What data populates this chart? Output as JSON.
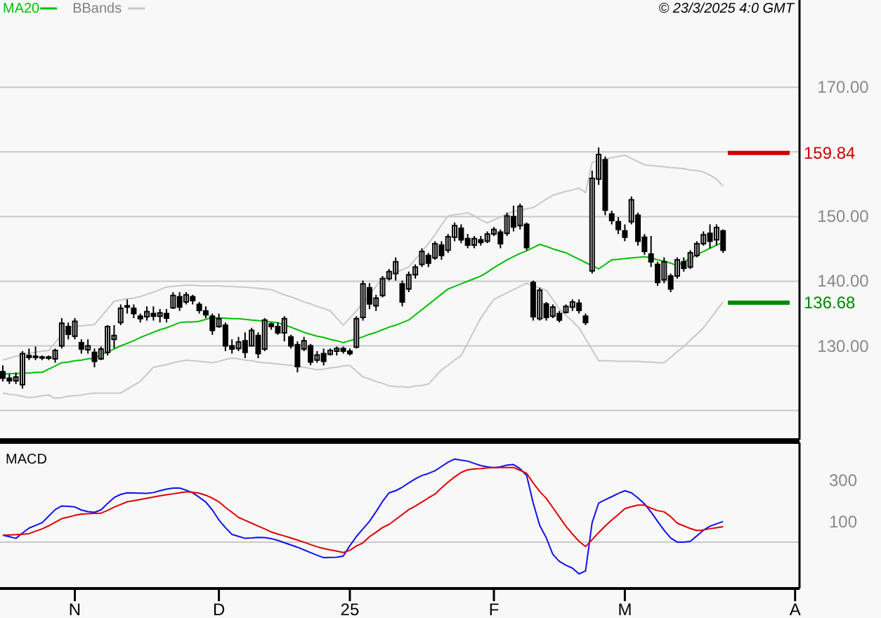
{
  "chart_data": [
    {
      "type": "candlestick",
      "color": "#000000",
      "categories": [
        null,
        null,
        null,
        null,
        null,
        null,
        null,
        null,
        null,
        null,
        null,
        null,
        null,
        null,
        null,
        null,
        null,
        null,
        null,
        null,
        null,
        null,
        null,
        null,
        null,
        null,
        null,
        null,
        null,
        null,
        null,
        null,
        null,
        null,
        null,
        null,
        null,
        null,
        null,
        null,
        null,
        null,
        null,
        null,
        null,
        null,
        null,
        null,
        null,
        null,
        null,
        null,
        null,
        null,
        null,
        null,
        null,
        null,
        null,
        null,
        null,
        null,
        null,
        null,
        null,
        null,
        null,
        null,
        null,
        null,
        null,
        null,
        null,
        null,
        null,
        null,
        null,
        null,
        null,
        null,
        null,
        null,
        null,
        null,
        null,
        null,
        null,
        null,
        null,
        null,
        null,
        null,
        null,
        null,
        null,
        null,
        null,
        null,
        null,
        null,
        null,
        null,
        null,
        null,
        null,
        null,
        null,
        null,
        null,
        null,
        null,
        null,
        null,
        null,
        null,
        null,
        null,
        null,
        null,
        null,
        null,
        null
      ],
      "ohlc": [
        [
          126.0,
          127.0,
          124.5,
          125.0
        ],
        [
          125.0,
          125.6,
          124.1,
          124.6
        ],
        [
          124.6,
          125.9,
          124.1,
          125.2
        ],
        [
          124.0,
          129.2,
          123.4,
          128.8
        ],
        [
          128.5,
          129.6,
          127.8,
          128.2
        ],
        [
          128.2,
          129.9,
          127.8,
          128.4
        ],
        [
          128.3,
          128.5,
          127.8,
          128.2
        ],
        [
          128.1,
          128.5,
          127.8,
          128.3
        ],
        [
          128.0,
          129.6,
          127.4,
          129.3
        ],
        [
          130.0,
          134.3,
          129.6,
          133.5
        ],
        [
          133.0,
          133.6,
          131.0,
          131.8
        ],
        [
          131.5,
          134.3,
          131.0,
          133.8
        ],
        [
          130.5,
          131.0,
          128.8,
          129.5
        ],
        [
          129.4,
          131.0,
          128.8,
          130.0
        ],
        [
          129.0,
          129.6,
          126.7,
          127.6
        ],
        [
          128.0,
          129.9,
          127.8,
          129.5
        ],
        [
          129.0,
          133.2,
          128.5,
          133.0
        ],
        [
          131.0,
          133.2,
          129.6,
          131.6
        ],
        [
          133.6,
          136.4,
          133.2,
          135.8
        ],
        [
          136.0,
          137.2,
          135.0,
          136.2
        ],
        [
          135.8,
          136.4,
          134.3,
          135.0
        ],
        [
          134.6,
          135.0,
          133.6,
          134.2
        ],
        [
          134.5,
          136.1,
          133.9,
          135.3
        ],
        [
          135.0,
          136.1,
          133.9,
          134.6
        ],
        [
          134.6,
          135.7,
          133.6,
          135.1
        ],
        [
          135.0,
          135.7,
          133.6,
          134.3
        ],
        [
          135.9,
          138.3,
          135.7,
          137.8
        ],
        [
          137.6,
          138.3,
          135.4,
          136.0
        ],
        [
          136.8,
          138.3,
          136.4,
          137.9
        ],
        [
          137.6,
          137.9,
          136.4,
          137.0
        ],
        [
          136.4,
          136.8,
          135.0,
          135.5
        ],
        [
          135.4,
          136.1,
          134.3,
          134.8
        ],
        [
          134.6,
          135.0,
          131.7,
          132.4
        ],
        [
          133.0,
          135.0,
          132.8,
          134.2
        ],
        [
          133.2,
          133.6,
          129.2,
          130.0
        ],
        [
          130.0,
          131.0,
          128.8,
          129.5
        ],
        [
          129.6,
          131.4,
          129.2,
          130.6
        ],
        [
          130.8,
          132.1,
          128.1,
          129.0
        ],
        [
          130.0,
          132.8,
          129.9,
          132.4
        ],
        [
          131.6,
          132.1,
          128.1,
          128.8
        ],
        [
          129.5,
          134.3,
          129.2,
          134.0
        ],
        [
          133.4,
          133.6,
          132.5,
          133.0
        ],
        [
          133.0,
          133.6,
          131.7,
          132.0
        ],
        [
          132.0,
          134.6,
          130.7,
          134.2
        ],
        [
          131.4,
          131.7,
          129.6,
          130.0
        ],
        [
          130.2,
          130.7,
          125.9,
          126.8
        ],
        [
          129.5,
          131.4,
          129.2,
          130.8
        ],
        [
          130.0,
          130.3,
          127.0,
          127.5
        ],
        [
          127.8,
          129.2,
          127.4,
          128.6
        ],
        [
          128.8,
          129.6,
          127.0,
          127.6
        ],
        [
          128.7,
          129.6,
          128.5,
          129.3
        ],
        [
          129.2,
          129.9,
          128.5,
          129.6
        ],
        [
          129.6,
          129.9,
          128.8,
          129.2
        ],
        [
          129.2,
          129.6,
          128.5,
          128.8
        ],
        [
          129.8,
          134.6,
          129.6,
          134.2
        ],
        [
          134.4,
          140.1,
          133.9,
          139.6
        ],
        [
          139.0,
          139.7,
          135.7,
          136.5
        ],
        [
          136.2,
          137.9,
          135.4,
          137.4
        ],
        [
          137.8,
          140.8,
          137.5,
          140.4
        ],
        [
          140.4,
          141.9,
          140.1,
          141.5
        ],
        [
          141.2,
          143.7,
          140.1,
          143.0
        ],
        [
          139.6,
          140.1,
          136.1,
          136.8
        ],
        [
          138.8,
          141.5,
          138.3,
          141.0
        ],
        [
          141.0,
          142.6,
          140.4,
          142.2
        ],
        [
          142.6,
          145.1,
          142.2,
          144.6
        ],
        [
          144.0,
          144.4,
          142.2,
          142.8
        ],
        [
          143.6,
          146.2,
          143.3,
          145.8
        ],
        [
          145.6,
          146.2,
          143.3,
          144.0
        ],
        [
          144.8,
          147.3,
          144.4,
          146.9
        ],
        [
          146.8,
          149.1,
          146.2,
          148.6
        ],
        [
          148.2,
          148.8,
          145.9,
          146.4
        ],
        [
          146.6,
          147.3,
          145.1,
          145.6
        ],
        [
          145.6,
          147.0,
          145.1,
          146.6
        ],
        [
          146.4,
          147.0,
          145.5,
          146.0
        ],
        [
          146.2,
          147.7,
          145.9,
          147.3
        ],
        [
          147.3,
          148.4,
          147.0,
          148.0
        ],
        [
          147.6,
          148.0,
          145.1,
          145.8
        ],
        [
          147.4,
          150.6,
          147.0,
          150.1
        ],
        [
          150.0,
          151.7,
          147.7,
          148.4
        ],
        [
          148.6,
          152.0,
          148.0,
          151.6
        ],
        [
          148.8,
          149.1,
          144.8,
          145.2
        ],
        [
          139.8,
          140.1,
          133.9,
          134.5
        ],
        [
          134.2,
          139.0,
          133.9,
          138.6
        ],
        [
          136.5,
          136.8,
          133.9,
          134.4
        ],
        [
          134.6,
          136.4,
          134.3,
          136.0
        ],
        [
          135.0,
          135.4,
          133.6,
          134.0
        ],
        [
          135.2,
          136.4,
          135.0,
          136.1
        ],
        [
          136.0,
          137.2,
          135.4,
          136.8
        ],
        [
          136.6,
          137.2,
          135.0,
          135.5
        ],
        [
          134.6,
          135.0,
          133.2,
          133.6
        ],
        [
          141.6,
          157.1,
          141.2,
          155.9
        ],
        [
          155.8,
          160.7,
          154.9,
          159.6
        ],
        [
          158.8,
          159.3,
          150.2,
          151.0
        ],
        [
          150.4,
          150.9,
          148.8,
          149.4
        ],
        [
          149.2,
          149.9,
          147.3,
          148.0
        ],
        [
          147.8,
          148.8,
          146.2,
          146.8
        ],
        [
          149.2,
          153.1,
          148.8,
          152.6
        ],
        [
          150.2,
          150.6,
          145.5,
          146.2
        ],
        [
          146.8,
          147.3,
          144.1,
          144.6
        ],
        [
          144.2,
          147.0,
          142.2,
          143.0
        ],
        [
          142.6,
          143.0,
          139.3,
          139.8
        ],
        [
          140.2,
          143.7,
          139.7,
          143.0
        ],
        [
          140.8,
          141.2,
          138.3,
          138.8
        ],
        [
          140.8,
          143.7,
          140.4,
          143.3
        ],
        [
          143.0,
          143.7,
          141.5,
          142.0
        ],
        [
          142.2,
          144.8,
          141.9,
          144.4
        ],
        [
          144.0,
          146.2,
          143.7,
          145.8
        ],
        [
          145.8,
          147.7,
          145.5,
          147.2
        ],
        [
          147.4,
          148.8,
          145.1,
          146.2
        ],
        [
          146.4,
          148.8,
          145.5,
          148.3
        ],
        [
          147.8,
          148.0,
          144.4,
          144.8
        ],
        null,
        null,
        null,
        null,
        null,
        null,
        null,
        null,
        null,
        null,
        null
      ],
      "series": [
        {
          "name": "MA20",
          "type": "line",
          "color": "#00c000",
          "values": [
            125.6,
            125.7,
            125.7,
            125.8,
            125.8,
            125.9,
            125.9,
            126.4,
            126.9,
            127.4,
            127.5,
            127.7,
            127.8,
            128.0,
            128.1,
            128.6,
            129.1,
            129.5,
            130.0,
            130.4,
            130.8,
            131.3,
            131.7,
            132.1,
            132.5,
            132.8,
            133.2,
            133.6,
            133.7,
            133.7,
            133.8,
            134.1,
            134.4,
            134.3,
            134.3,
            134.2,
            134.2,
            134.1,
            134.0,
            133.9,
            133.8,
            133.7,
            133.6,
            133.2,
            132.9,
            132.5,
            132.1,
            131.8,
            131.5,
            131.3,
            131.0,
            130.8,
            130.5,
            130.8,
            131.1,
            131.4,
            131.8,
            132.1,
            132.5,
            132.9,
            133.2,
            133.6,
            134.0,
            134.8,
            135.6,
            136.4,
            137.2,
            138.0,
            138.8,
            139.2,
            139.6,
            140.0,
            140.4,
            140.8,
            141.4,
            142.1,
            142.7,
            143.3,
            143.8,
            144.3,
            144.7,
            145.2,
            145.7,
            145.4,
            145.0,
            144.7,
            144.4,
            143.9,
            143.4,
            142.9,
            142.4,
            141.9,
            142.6,
            143.3,
            143.4,
            143.5,
            143.6,
            143.7,
            143.8,
            143.6,
            143.3,
            143.1,
            142.8,
            142.4,
            143.0,
            143.5,
            144.1,
            144.6,
            145.1,
            145.6,
            146.0,
            null,
            null,
            null,
            null,
            null,
            null,
            null,
            null,
            null,
            null,
            null
          ]
        },
        {
          "name": "BBands",
          "type": "line",
          "color": "#c8c8c8",
          "values": [
            127.8,
            128.1,
            128.4,
            128.6,
            128.9,
            129.0,
            129.2,
            129.3,
            130.5,
            131.7,
            132.9,
            133.0,
            133.1,
            133.2,
            133.3,
            134.5,
            135.7,
            136.9,
            137.1,
            137.3,
            137.4,
            137.6,
            138.0,
            138.3,
            138.7,
            139.1,
            139.2,
            139.3,
            139.4,
            139.4,
            139.3,
            139.3,
            139.3,
            139.3,
            139.2,
            139.2,
            139.1,
            139.1,
            139.0,
            138.9,
            138.8,
            138.7,
            138.3,
            137.9,
            137.6,
            137.2,
            136.8,
            136.5,
            136.1,
            135.8,
            135.4,
            134.3,
            133.2,
            134.3,
            135.4,
            136.7,
            137.9,
            139.2,
            140.4,
            140.9,
            141.3,
            141.8,
            142.2,
            143.4,
            144.6,
            145.8,
            147.2,
            148.7,
            150.1,
            150.3,
            150.4,
            150.6,
            150.1,
            149.5,
            149.0,
            149.5,
            149.9,
            150.4,
            150.8,
            151.0,
            151.2,
            151.4,
            152.0,
            152.7,
            153.3,
            153.6,
            153.9,
            154.1,
            154.4,
            153.7,
            158.4,
            158.6,
            158.9,
            159.1,
            159.3,
            159.5,
            159.0,
            158.5,
            158.0,
            157.9,
            157.8,
            157.7,
            157.6,
            157.5,
            157.4,
            157.2,
            157.1,
            156.9,
            156.4,
            155.8,
            154.7,
            null,
            null,
            null,
            null,
            null,
            null,
            null,
            null,
            null,
            null,
            null
          ]
        },
        {
          "type": "line",
          "color": "#c8c8c8",
          "values": [
            122.7,
            122.5,
            122.4,
            122.2,
            122.0,
            122.1,
            122.3,
            122.4,
            121.9,
            122.0,
            122.2,
            122.3,
            122.4,
            122.6,
            122.7,
            122.7,
            122.7,
            122.7,
            122.7,
            123.3,
            123.9,
            124.5,
            125.6,
            126.7,
            126.9,
            127.1,
            127.4,
            127.6,
            127.8,
            127.7,
            127.6,
            127.5,
            127.4,
            127.6,
            127.9,
            128.1,
            128.0,
            127.8,
            127.7,
            127.5,
            127.4,
            127.3,
            127.2,
            127.1,
            127.0,
            126.8,
            126.7,
            126.5,
            126.3,
            126.4,
            126.6,
            126.7,
            126.9,
            127.0,
            126.1,
            125.2,
            124.9,
            124.5,
            124.2,
            123.8,
            123.7,
            123.7,
            123.6,
            123.8,
            123.9,
            124.1,
            125.2,
            126.3,
            127.0,
            127.8,
            128.5,
            130.4,
            132.4,
            134.3,
            135.8,
            137.2,
            137.7,
            138.2,
            138.7,
            139.2,
            139.7,
            139.3,
            139.0,
            138.6,
            137.2,
            135.7,
            134.7,
            133.8,
            132.8,
            131.1,
            129.4,
            127.7,
            127.7,
            127.7,
            127.6,
            127.6,
            127.6,
            127.6,
            127.5,
            127.5,
            127.4,
            127.4,
            128.2,
            129.1,
            129.9,
            130.9,
            131.8,
            132.8,
            134.1,
            135.5,
            136.8,
            null,
            null,
            null,
            null,
            null,
            null,
            null,
            null,
            null,
            null,
            null
          ]
        }
      ],
      "ylim": [
        115.5,
        183.5
      ],
      "yticks": [
        {
          "value": 120,
          "label": null
        },
        {
          "value": 130,
          "label": "130.00"
        },
        {
          "value": 140,
          "label": "140.00"
        },
        {
          "value": 150,
          "label": "150.00"
        },
        {
          "value": 160,
          "label": null
        },
        {
          "value": 170,
          "label": "170.00"
        }
      ],
      "grid": "y",
      "legend": "top left",
      "tick_labels": "y",
      "ref_lines": [
        {
          "axis": "y",
          "value": 159.84,
          "label": "159.84",
          "color": "#cc0000"
        },
        {
          "axis": "y",
          "value": 136.68,
          "label": "136.68",
          "color": "#008800"
        }
      ],
      "annotations": [
        "© 23/3/2025 4:0 GMT"
      ]
    },
    {
      "type": "line",
      "title": "MACD",
      "categories": [
        null,
        null,
        null,
        null,
        null,
        null,
        null,
        null,
        null,
        null,
        null,
        "N",
        null,
        null,
        null,
        null,
        null,
        null,
        null,
        null,
        null,
        null,
        null,
        null,
        null,
        null,
        null,
        null,
        null,
        null,
        null,
        null,
        null,
        "D",
        null,
        null,
        null,
        null,
        null,
        null,
        null,
        null,
        null,
        null,
        null,
        null,
        null,
        null,
        null,
        null,
        null,
        null,
        null,
        "25",
        null,
        null,
        null,
        null,
        null,
        null,
        null,
        null,
        null,
        null,
        null,
        null,
        null,
        null,
        null,
        null,
        null,
        null,
        null,
        null,
        null,
        "F",
        null,
        null,
        null,
        null,
        null,
        null,
        null,
        null,
        null,
        null,
        null,
        null,
        null,
        null,
        null,
        null,
        null,
        null,
        null,
        "M",
        null,
        null,
        null,
        null,
        null,
        null,
        null,
        null,
        null,
        null,
        null,
        null,
        null,
        null,
        null,
        null,
        null,
        null,
        null,
        null,
        null,
        null,
        null,
        null,
        null,
        "A"
      ],
      "series": [
        {
          "color": "#1010f0",
          "values": [
            34,
            26,
            18,
            44,
            68,
            81,
            94,
            126,
            158,
            176,
            174,
            171,
            156,
            148,
            145,
            157,
            188,
            217,
            232,
            240,
            239,
            238,
            237,
            241,
            250,
            258,
            263,
            263,
            253,
            240,
            218,
            195,
            156,
            108,
            70,
            37,
            28,
            18,
            20,
            23,
            22,
            17,
            8,
            -3,
            -14,
            -25,
            -38,
            -51,
            -64,
            -76,
            -75,
            -74,
            -68,
            -18,
            27,
            64,
            101,
            148,
            198,
            240,
            250,
            267,
            288,
            308,
            324,
            334,
            347,
            368,
            389,
            404,
            399,
            394,
            383,
            372,
            366,
            362,
            366,
            375,
            377,
            357,
            324,
            190,
            81,
            21,
            -60,
            -94,
            -113,
            -127,
            -155,
            -140,
            94,
            190,
            206,
            221,
            237,
            250,
            240,
            215,
            186,
            146,
            101,
            57,
            20,
            0,
            0,
            4,
            30,
            58,
            77,
            89,
            100,
            null,
            null,
            null,
            null,
            null,
            null,
            null,
            null,
            null,
            null,
            null
          ]
        },
        {
          "color": "#e00000",
          "values": [
            34,
            35,
            36,
            38,
            41,
            53,
            64,
            79,
            97,
            114,
            122,
            130,
            136,
            138,
            140,
            141,
            154,
            170,
            183,
            196,
            201,
            207,
            213,
            219,
            225,
            230,
            235,
            240,
            245,
            242,
            238,
            228,
            214,
            196,
            169,
            145,
            120,
            106,
            92,
            78,
            64,
            49,
            39,
            30,
            20,
            10,
            -1,
            -12,
            -23,
            -31,
            -38,
            -44,
            -51,
            -40,
            -19,
            -4,
            26,
            48,
            71,
            86,
            110,
            134,
            158,
            175,
            195,
            215,
            233,
            264,
            292,
            317,
            339,
            352,
            356,
            358,
            361,
            363,
            363,
            363,
            363,
            349,
            335,
            288,
            246,
            213,
            168,
            122,
            77,
            39,
            4,
            -22,
            12,
            46,
            78,
            107,
            134,
            163,
            172,
            180,
            180,
            165,
            153,
            147,
            124,
            92,
            79,
            66,
            56,
            59,
            65,
            70,
            75,
            null,
            null,
            null,
            null,
            null,
            null,
            null,
            null,
            null,
            null,
            null
          ]
        }
      ],
      "ylim": [
        -226,
        485
      ],
      "yticks": [
        100,
        300
      ],
      "ref_lines": [
        {
          "axis": "y",
          "value": 0,
          "color": "#c8c8c8"
        }
      ]
    }
  ]
}
